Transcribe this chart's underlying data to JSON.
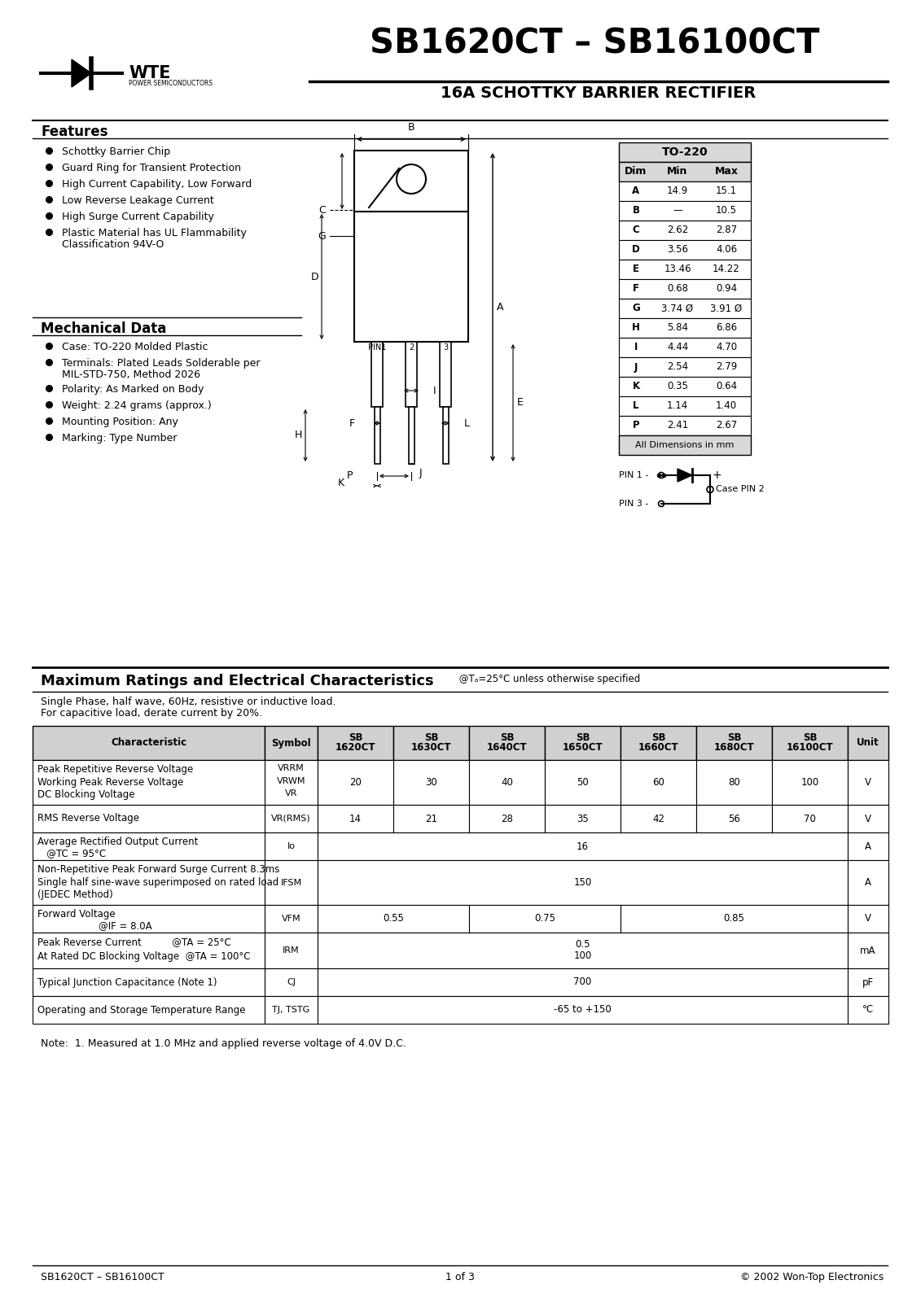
{
  "title_main": "SB1620CT – SB16100CT",
  "title_sub": "16A SCHOTTKY BARRIER RECTIFIER",
  "company": "WTE",
  "company_sub": "POWER SEMICONDUCTORS",
  "features_title": "Features",
  "mech_title": "Mechanical Data",
  "dim_table_title": "TO-220",
  "dim_headers": [
    "Dim",
    "Min",
    "Max"
  ],
  "dim_rows": [
    [
      "A",
      "14.9",
      "15.1"
    ],
    [
      "B",
      "—",
      "10.5"
    ],
    [
      "C",
      "2.62",
      "2.87"
    ],
    [
      "D",
      "3.56",
      "4.06"
    ],
    [
      "E",
      "13.46",
      "14.22"
    ],
    [
      "F",
      "0.68",
      "0.94"
    ],
    [
      "G",
      "3.74 Ø",
      "3.91 Ø"
    ],
    [
      "H",
      "5.84",
      "6.86"
    ],
    [
      "I",
      "4.44",
      "4.70"
    ],
    [
      "J",
      "2.54",
      "2.79"
    ],
    [
      "K",
      "0.35",
      "0.64"
    ],
    [
      "L",
      "1.14",
      "1.40"
    ],
    [
      "P",
      "2.41",
      "2.67"
    ]
  ],
  "dim_footer": "All Dimensions in mm",
  "ratings_title": "Maximum Ratings and Electrical Characteristics",
  "ratings_subtitle": "@Tₐ=25°C unless otherwise specified",
  "note": "Note:  1. Measured at 1.0 MHz and applied reverse voltage of 4.0V D.C.",
  "footer_left": "SB1620CT – SB16100CT",
  "footer_center": "1 of 3",
  "footer_right": "© 2002 Won-Top Electronics"
}
